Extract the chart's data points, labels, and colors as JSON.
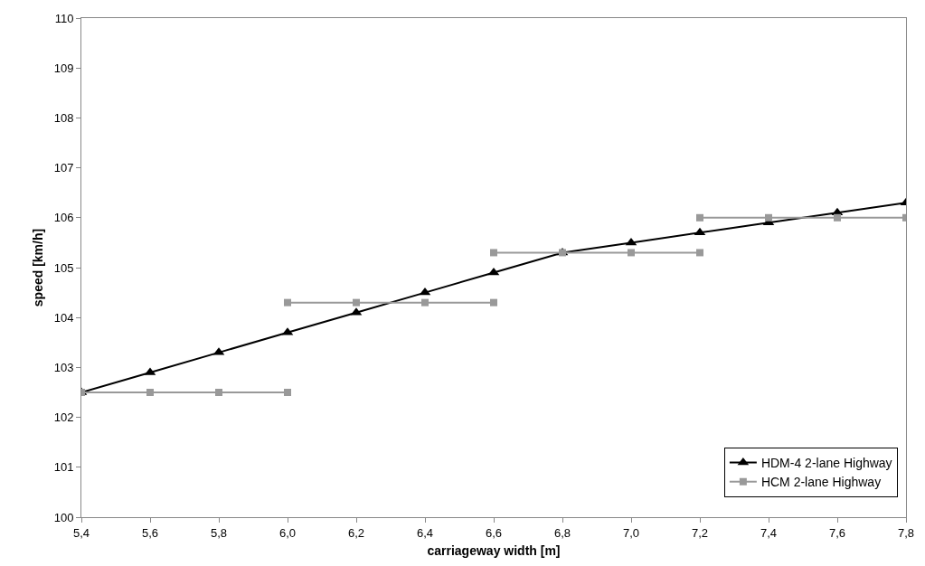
{
  "chart_data": {
    "type": "line",
    "xlabel": "carriageway width [m]",
    "ylabel": "speed [km/h]",
    "x": [
      5.4,
      5.6,
      5.8,
      6.0,
      6.2,
      6.4,
      6.6,
      6.8,
      7.0,
      7.2,
      7.4,
      7.6,
      7.8
    ],
    "series": [
      {
        "name": "HDM-4 2-lane Highway",
        "color": "#000000",
        "marker": "triangle",
        "values": [
          102.5,
          102.9,
          103.3,
          103.7,
          104.1,
          104.5,
          104.9,
          105.3,
          105.5,
          105.7,
          105.9,
          106.1,
          106.3
        ]
      },
      {
        "name": "HCM 2-lane Highway",
        "color": "#999999",
        "marker": "square",
        "x": [
          5.4,
          5.6,
          5.8,
          6.0,
          null,
          6.0,
          6.2,
          6.4,
          6.6,
          null,
          6.6,
          6.8,
          7.0,
          7.2,
          null,
          7.2,
          7.4,
          7.6,
          7.8
        ],
        "values": [
          102.5,
          102.5,
          102.5,
          102.5,
          null,
          104.3,
          104.3,
          104.3,
          104.3,
          null,
          105.3,
          105.3,
          105.3,
          105.3,
          null,
          106.0,
          106.0,
          106.0,
          106.0
        ]
      }
    ],
    "xlim": [
      5.4,
      7.8
    ],
    "xticks": [
      {
        "value": 5.4,
        "label": "5,4"
      },
      {
        "value": 5.6,
        "label": "5,6"
      },
      {
        "value": 5.8,
        "label": "5,8"
      },
      {
        "value": 6.0,
        "label": "6,0"
      },
      {
        "value": 6.2,
        "label": "6,2"
      },
      {
        "value": 6.4,
        "label": "6,4"
      },
      {
        "value": 6.6,
        "label": "6,6"
      },
      {
        "value": 6.8,
        "label": "6,8"
      },
      {
        "value": 7.0,
        "label": "7,0"
      },
      {
        "value": 7.2,
        "label": "7,2"
      },
      {
        "value": 7.4,
        "label": "7,4"
      },
      {
        "value": 7.6,
        "label": "7,6"
      },
      {
        "value": 7.8,
        "label": "7,8"
      }
    ],
    "ylim": [
      100,
      110
    ],
    "yticks": [
      100,
      101,
      102,
      103,
      104,
      105,
      106,
      107,
      108,
      109,
      110
    ],
    "legend": "bottom right",
    "line_style": "solid"
  }
}
